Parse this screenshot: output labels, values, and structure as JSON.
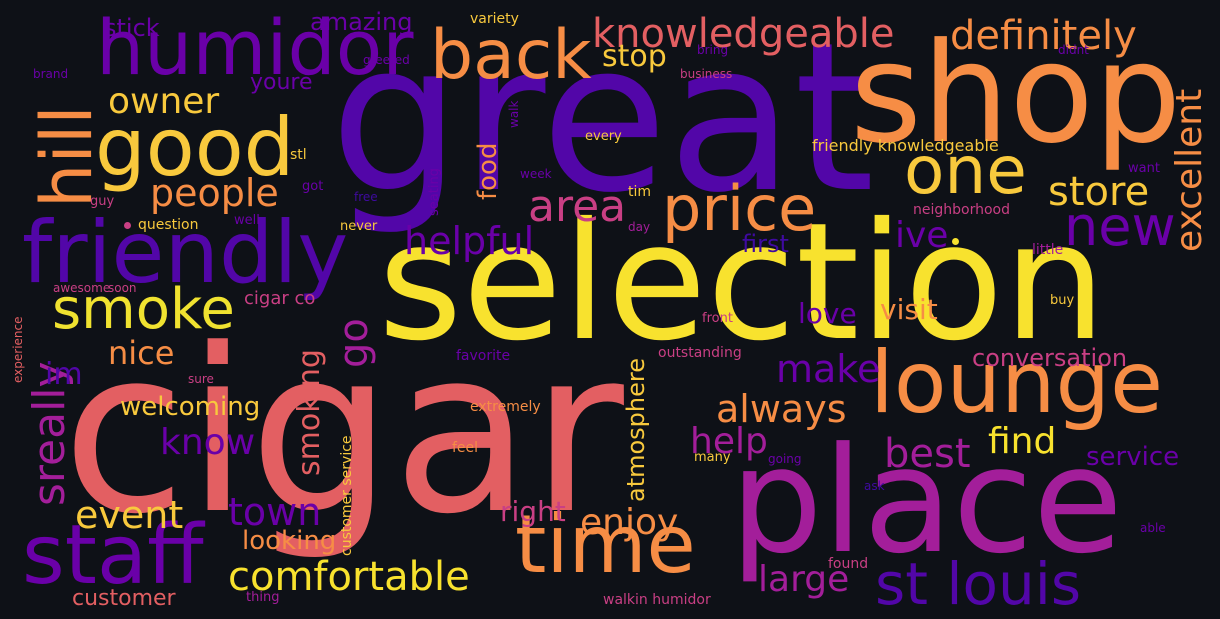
{
  "palette": {
    "background": "#0e1117",
    "yellow": "#f0e230",
    "gold": "#f8c93d",
    "orange": "#f68d45",
    "salmon": "#e35f62",
    "magenta": "#a31e9a",
    "pink": "#c93f84",
    "purple": "#6a00a8",
    "indigo": "#3f0aa0"
  },
  "words": [
    "cigar",
    "great",
    "selection",
    "shop",
    "place",
    "lounge",
    "humidor",
    "friendly",
    "staff",
    "time",
    "good",
    "back",
    "price",
    "one",
    "st louis",
    "hill",
    "knowledgeable",
    "definitely",
    "smoke",
    "new",
    "comfortable",
    "store",
    "excellent",
    "area",
    "people",
    "owner",
    "helpful",
    "always",
    "enjoy",
    "best",
    "know",
    "smoking",
    "help",
    "nice",
    "make",
    "go",
    "sreally",
    "event",
    "town",
    "find",
    "large",
    "ive",
    "welcoming",
    "conversation",
    "service",
    "atmosphere",
    "love",
    "visit",
    "right",
    "stop",
    "im",
    "looking",
    "food",
    "customer",
    "amazing",
    "first",
    "youre",
    "stick",
    "cigar co",
    "customer service",
    "friendly knowledgeable",
    "outstanding",
    "favorite",
    "extremely",
    "walkin humidor",
    "variety",
    "bring",
    "didnt",
    "business",
    "greeted",
    "brand",
    "stl",
    "got",
    "guy",
    "free",
    "seating",
    "walk",
    "week",
    "every",
    "tim",
    "question",
    "well",
    "never",
    "day",
    "neighborhood",
    "want",
    "little",
    "awesome",
    "soon",
    "experience",
    "front",
    "buy",
    "sure",
    "feel",
    "many",
    "going",
    "ask",
    "able",
    "found",
    "thing"
  ]
}
